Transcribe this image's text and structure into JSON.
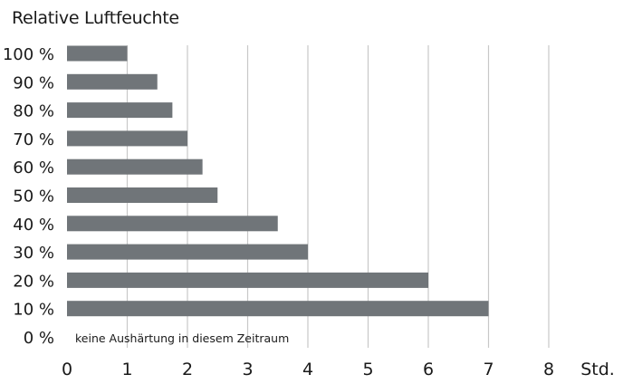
{
  "chart_data": {
    "type": "bar",
    "orientation": "horizontal",
    "title": "Relative Luftfeuchte",
    "x_unit": "Std.",
    "xlim": [
      0,
      8
    ],
    "x_ticks": [
      "0",
      "1",
      "2",
      "3",
      "4",
      "5",
      "6",
      "7",
      "8"
    ],
    "grid": "vertical",
    "categories": [
      "100 %",
      "90 %",
      "80 %",
      "70 %",
      "60 %",
      "50 %",
      "40 %",
      "30 %",
      "20 %",
      "10 %",
      "0 %"
    ],
    "values": [
      1,
      1.5,
      1.75,
      2,
      2.25,
      2.5,
      3.5,
      4,
      6,
      7,
      null
    ],
    "annotations": [
      {
        "category": "0 %",
        "text": "keine Aushärtung in diesem Zeitraum"
      }
    ],
    "bar_color": "#707579",
    "grid_color": "#c8c8c8"
  }
}
